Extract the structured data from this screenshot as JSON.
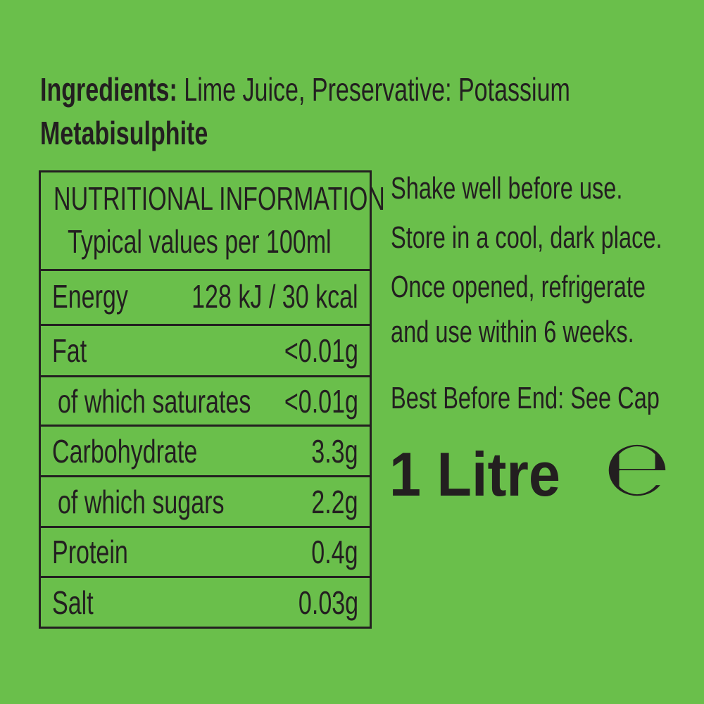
{
  "ingredients": {
    "label": "Ingredients:",
    "text": "Lime Juice, Preservative: Potassium",
    "text_bold": "Metabisulphite"
  },
  "nutrition": {
    "title": "NUTRITIONAL INFORMATION",
    "subtitle": "Typical values per 100ml",
    "rows": [
      {
        "label": "Energy",
        "value": "128 kJ / 30 kcal"
      },
      {
        "label": "Fat",
        "value": "<0.01g"
      },
      {
        "label": "of which saturates",
        "value": "<0.01g"
      },
      {
        "label": "Carbohydrate",
        "value": "3.3g"
      },
      {
        "label": "of which sugars",
        "value": "2.2g"
      },
      {
        "label": "Protein",
        "value": "0.4g"
      },
      {
        "label": "Salt",
        "value": "0.03g"
      }
    ]
  },
  "instructions": {
    "line1": "Shake well before use.",
    "line2": "Store in a cool, dark place.",
    "line3": "Once opened, refrigerate",
    "line4": "and use within 6 weeks.",
    "best_before": "Best Before End: See Cap"
  },
  "volume": {
    "text": "1 Litre",
    "estimated_mark": "℮"
  },
  "colors": {
    "background": "#6abf4b",
    "text": "#231f20"
  }
}
